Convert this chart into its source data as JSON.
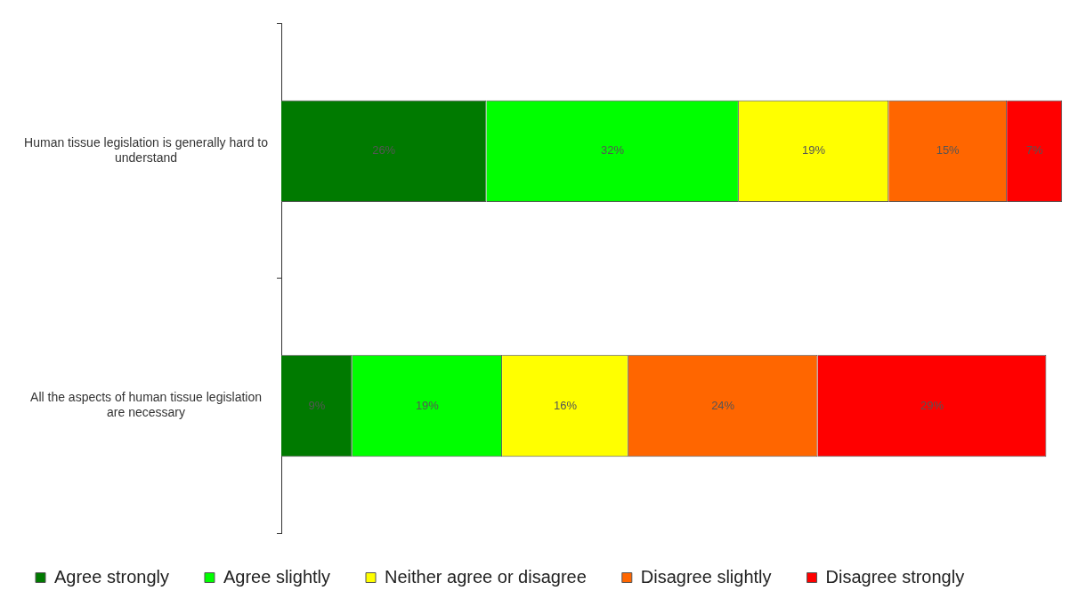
{
  "chart_data": {
    "type": "bar",
    "orientation": "horizontal",
    "stacked": true,
    "categories": [
      "Human tissue legislation is generally hard to understand",
      "All the aspects of human tissue legislation are necessary"
    ],
    "series": [
      {
        "name": "Agree strongly",
        "color": "#007a00",
        "values": [
          26,
          9
        ],
        "value_labels": [
          "26%",
          "9%"
        ]
      },
      {
        "name": "Agree slightly",
        "color": "#00ff00",
        "values": [
          32,
          19
        ],
        "value_labels": [
          "32%",
          "19%"
        ]
      },
      {
        "name": "Neither agree or disagree",
        "color": "#ffff00",
        "values": [
          19,
          16
        ],
        "value_labels": [
          "19%",
          "16%"
        ]
      },
      {
        "name": "Disagree slightly",
        "color": "#ff6600",
        "values": [
          15,
          24
        ],
        "value_labels": [
          "15%",
          "24%"
        ]
      },
      {
        "name": "Disagree strongly",
        "color": "#ff0000",
        "values": [
          7,
          29
        ],
        "value_labels": [
          "7%",
          "29%"
        ]
      }
    ],
    "tick_labels": "y",
    "grid": false,
    "legend": "bottom"
  }
}
